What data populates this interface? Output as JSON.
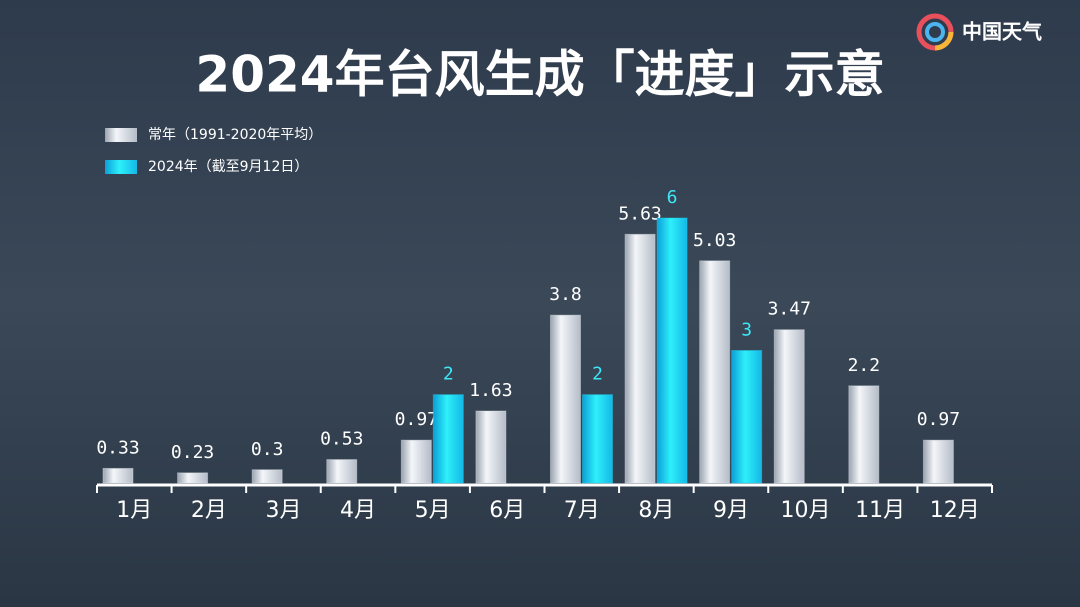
{
  "logo": "中国天气",
  "chart_data": {
    "type": "bar",
    "title": "2024年台风生成「进度」示意",
    "categories": [
      "1月",
      "2月",
      "3月",
      "4月",
      "5月",
      "6月",
      "7月",
      "8月",
      "9月",
      "10月",
      "11月",
      "12月"
    ],
    "series": [
      {
        "name": "常年（1991-2020年平均）",
        "color": "#e4e8ee",
        "label_color": "#ffffff",
        "values": [
          0.33,
          0.23,
          0.3,
          0.53,
          0.97,
          1.63,
          3.8,
          5.63,
          5.03,
          3.47,
          2.2,
          0.97
        ]
      },
      {
        "name": "2024年（截至9月12日）",
        "color": "#1fd6f2",
        "label_color": "#3fe6f6",
        "values": [
          null,
          null,
          null,
          null,
          2,
          null,
          2,
          6,
          3,
          null,
          null,
          null
        ]
      }
    ],
    "legend": "top-left",
    "grid": false
  }
}
